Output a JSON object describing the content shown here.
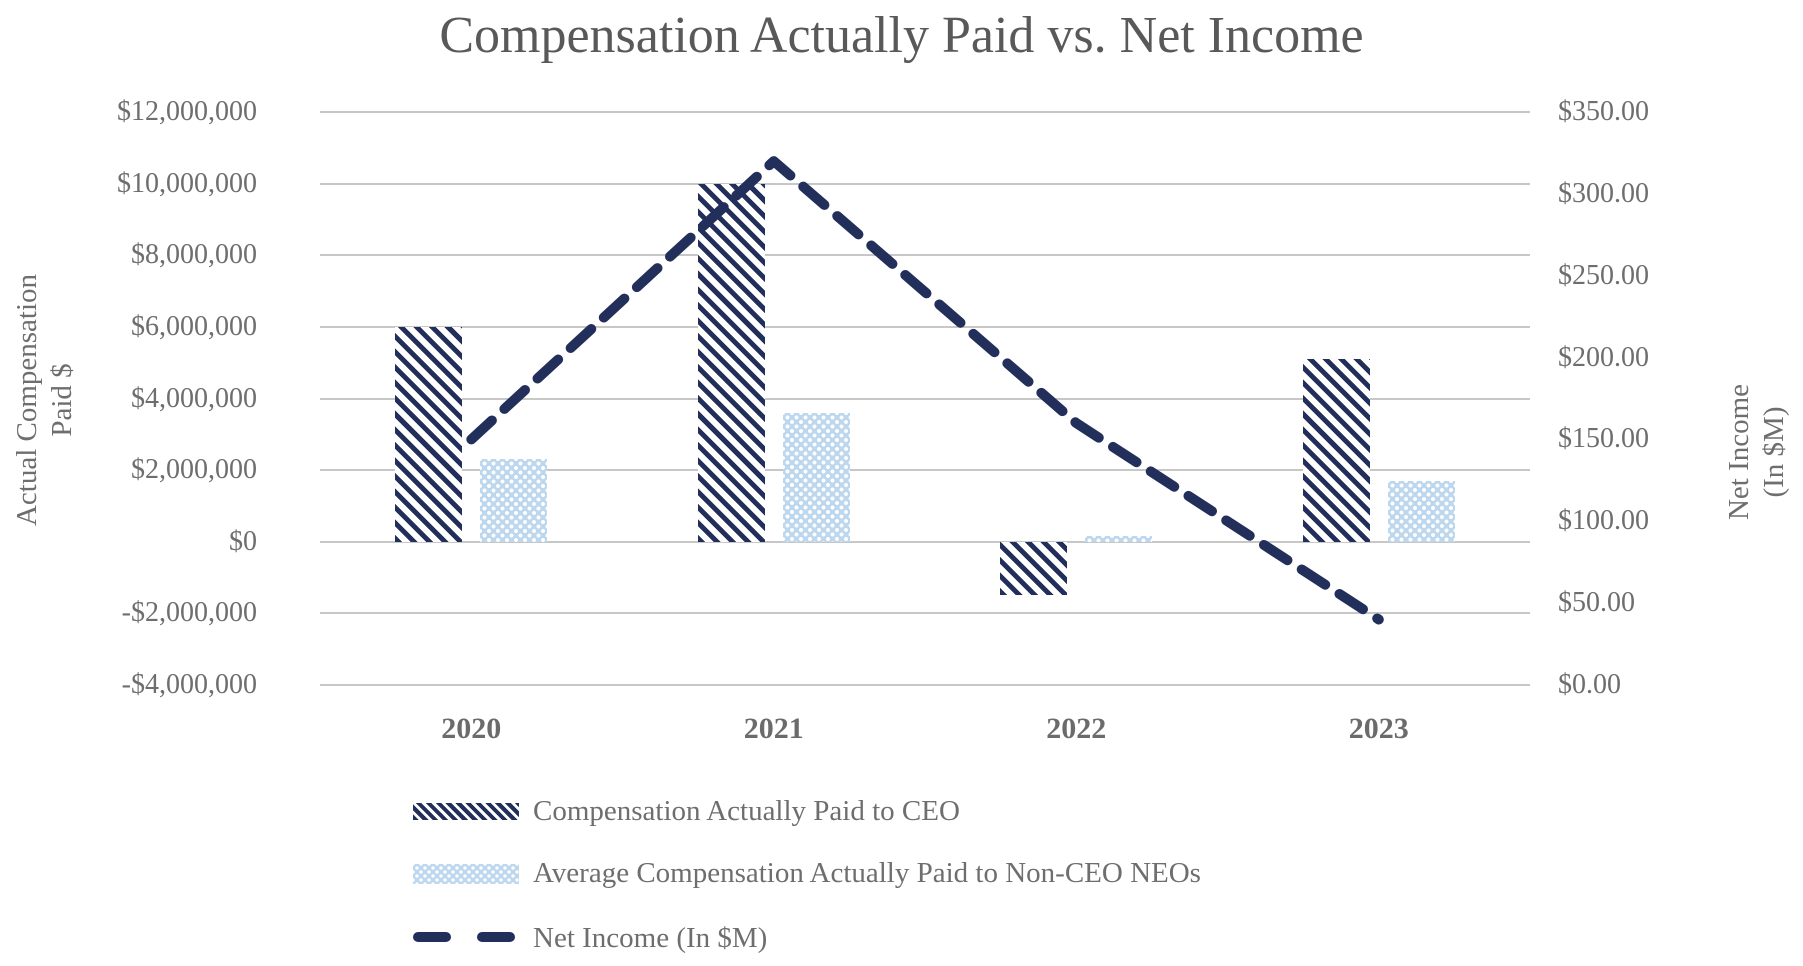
{
  "title": "Compensation Actually Paid vs. Net Income",
  "colors": {
    "navy": "#232f5b",
    "light_blue": "#bdd7ee",
    "gridline_gray": "#c7c7c7",
    "text_gray": "#6e6e6e",
    "title_gray": "#595959"
  },
  "left_axis": {
    "title_line1": "Actual Compensation",
    "title_line2": "Paid $",
    "tick_labels": [
      "$12,000,000",
      "$10,000,000",
      "$8,000,000",
      "$6,000,000",
      "$4,000,000",
      "$2,000,000",
      "$0",
      "-$2,000,000",
      "-$4,000,000"
    ]
  },
  "right_axis": {
    "title_line1": "Net Income",
    "title_line2": "(In $M)",
    "tick_labels": [
      "$350.00",
      "$300.00",
      "$250.00",
      "$200.00",
      "$150.00",
      "$100.00",
      "$50.00",
      "$0.00"
    ]
  },
  "legend": [
    {
      "label": "Compensation Actually Paid to CEO",
      "swatch": "navy-diagonal-hatch"
    },
    {
      "label": "Average Compensation Actually Paid to Non-CEO NEOs",
      "swatch": "lightblue-dot-pattern"
    },
    {
      "label": "Net Income (In $M)",
      "swatch": "navy-dashed-line"
    }
  ],
  "chart_data": {
    "type": "bar",
    "subtype": "combo-bar-line-dual-axis",
    "title": "Compensation Actually Paid vs. Net Income",
    "categories": [
      "2020",
      "2021",
      "2022",
      "2023"
    ],
    "series": [
      {
        "name": "Compensation Actually Paid to CEO",
        "type": "bar",
        "axis": "left",
        "pattern": "navy-diagonal-hatch",
        "values": [
          6000000,
          10000000,
          -1500000,
          5100000
        ]
      },
      {
        "name": "Average Compensation Actually Paid to Non-CEO NEOs",
        "type": "bar",
        "axis": "left",
        "pattern": "lightblue-dot-pattern",
        "values": [
          2300000,
          3600000,
          150000,
          1700000
        ]
      },
      {
        "name": "Net Income (In $M)",
        "type": "line",
        "axis": "right",
        "style": "thick-navy-dashed",
        "values": [
          150,
          320,
          160,
          40
        ]
      }
    ],
    "left_ylabel": "Actual Compensation Paid $",
    "right_ylabel": "Net Income (In $M)",
    "xlabel": "",
    "left_ylim": [
      -4000000,
      12000000
    ],
    "left_major_unit": 2000000,
    "right_ylim": [
      0,
      350
    ],
    "right_major_unit": 50,
    "grid": "horizontal",
    "legend_position": "bottom-left"
  }
}
